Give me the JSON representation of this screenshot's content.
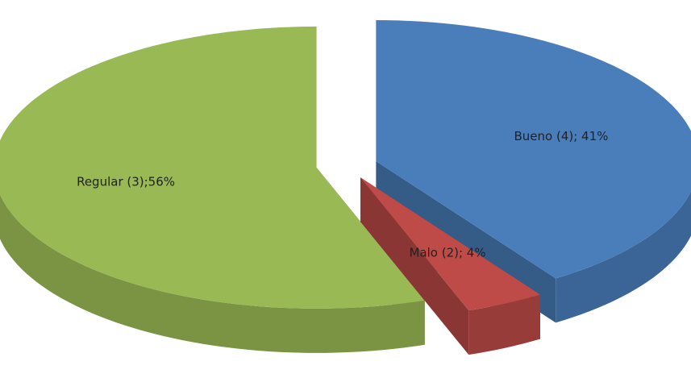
{
  "chart_data": {
    "type": "pie",
    "values": [
      41,
      4,
      56
    ],
    "value_labels": [
      "Bueno (4); 41%",
      "Malo (2); 4%",
      "Regular (3);56%"
    ],
    "colors": [
      "#4a7ebb",
      "#be4b48",
      "#98b954"
    ]
  }
}
